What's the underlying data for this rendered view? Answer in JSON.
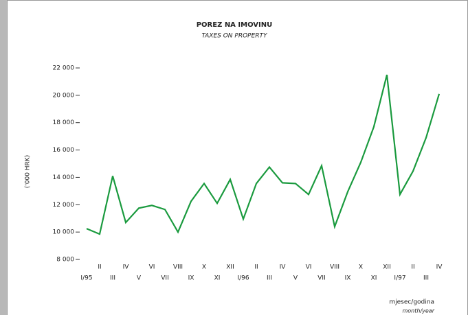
{
  "chart_data": {
    "type": "line",
    "title": "POREZ NA IMOVINU",
    "subtitle": "TAXES ON PROPERTY",
    "y_label": "('000 HRK)",
    "x_label": "mjesec/godina",
    "x_label_sub": "month/year",
    "categories": [
      "I/95",
      "II",
      "III",
      "IV",
      "V",
      "VI",
      "VII",
      "VIII",
      "IX",
      "X",
      "XI",
      "XII",
      "I/96",
      "II",
      "III",
      "IV",
      "V",
      "VI",
      "VII",
      "VIII",
      "IX",
      "X",
      "XI",
      "XII",
      "I/97",
      "II",
      "III",
      "IV"
    ],
    "series": [
      {
        "name": "Porez na imovinu",
        "color": "#1a9a3e",
        "values": [
          10250,
          9850,
          14100,
          10700,
          11750,
          11950,
          11650,
          10000,
          12250,
          13550,
          12100,
          13850,
          10950,
          13550,
          14750,
          13600,
          13550,
          12750,
          14850,
          10400,
          12950,
          15100,
          17700,
          21500,
          12750,
          14450,
          16900,
          20100
        ]
      }
    ],
    "ylim": [
      8000,
      22000
    ],
    "yticks": [
      {
        "value": 8000,
        "label": "8 000"
      },
      {
        "value": 10000,
        "label": "10 000"
      },
      {
        "value": 12000,
        "label": "12 000"
      },
      {
        "value": 14000,
        "label": "14 000"
      },
      {
        "value": 16000,
        "label": "16 000"
      },
      {
        "value": 18000,
        "label": "18 000"
      },
      {
        "value": 20000,
        "label": "20 000"
      },
      {
        "value": 22000,
        "label": "22 000"
      }
    ]
  }
}
